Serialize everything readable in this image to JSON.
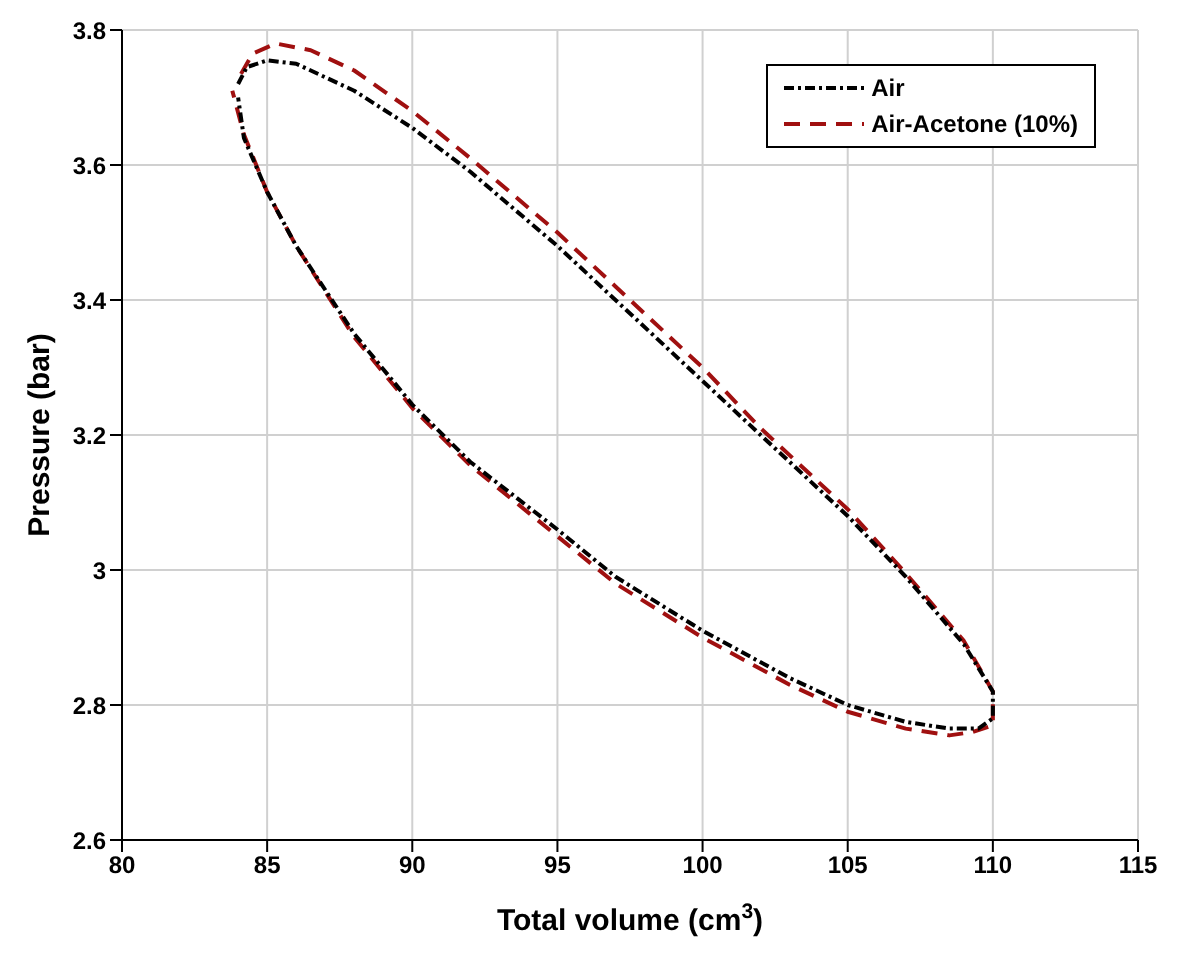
{
  "chart_data": {
    "type": "line",
    "xlabel": "Total volume (cm$^{3}$)",
    "ylabel": "Pressure (bar)",
    "xlim": [
      80,
      115
    ],
    "xticks": [
      80,
      85,
      90,
      95,
      100,
      105,
      110,
      115
    ],
    "ylim": [
      2.6,
      3.8
    ],
    "yticks": [
      2.6,
      2.8,
      3,
      3.2,
      3.4,
      3.6,
      3.8
    ],
    "grid": true,
    "legend": "top right",
    "marker": "none",
    "series": [
      {
        "name": "Air",
        "color": "#000000",
        "line_style": "dashdot",
        "x": [
          84,
          84.3,
          85,
          86,
          88,
          90,
          92,
          95,
          97,
          100,
          102,
          105,
          107,
          109,
          110,
          110,
          109.5,
          108.5,
          107,
          105,
          103,
          100,
          97,
          95,
          92,
          90,
          88,
          86,
          85,
          84.2,
          84
        ],
        "values": [
          3.72,
          3.745,
          3.755,
          3.75,
          3.71,
          3.655,
          3.59,
          3.48,
          3.4,
          3.28,
          3.2,
          3.08,
          2.99,
          2.89,
          2.82,
          2.78,
          2.765,
          2.765,
          2.775,
          2.8,
          2.84,
          2.91,
          2.99,
          3.06,
          3.16,
          3.245,
          3.35,
          3.48,
          3.56,
          3.64,
          3.7
        ]
      },
      {
        "name": "Air-Acetone (10%)",
        "color": "#a01010",
        "line_style": "dashed",
        "x": [
          84.1,
          84.5,
          85.3,
          86.5,
          88,
          90,
          92,
          95,
          97,
          100,
          102,
          105,
          107,
          109,
          110,
          110,
          109.3,
          108.5,
          107,
          105,
          103,
          100,
          97,
          95,
          92,
          90,
          88,
          86,
          85,
          84.2,
          83.8
        ],
        "values": [
          3.735,
          3.765,
          3.78,
          3.77,
          3.74,
          3.68,
          3.61,
          3.5,
          3.42,
          3.3,
          3.21,
          3.09,
          2.995,
          2.895,
          2.82,
          2.77,
          2.76,
          2.755,
          2.765,
          2.79,
          2.83,
          2.9,
          2.98,
          3.05,
          3.155,
          3.24,
          3.345,
          3.48,
          3.56,
          3.645,
          3.71
        ]
      }
    ]
  }
}
